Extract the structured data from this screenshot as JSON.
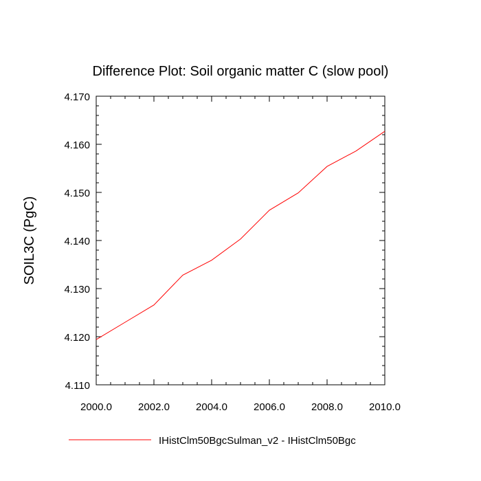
{
  "chart_data": {
    "type": "line",
    "title": "Difference Plot: Soil organic matter C (slow pool)",
    "xlabel": "",
    "ylabel": "SOIL3C  (PgC)",
    "xlim": [
      2000,
      2010
    ],
    "ylim": [
      4.11,
      4.17
    ],
    "x_ticks": [
      2000,
      2002,
      2004,
      2006,
      2008,
      2010
    ],
    "x_tick_labels": [
      "2000.0",
      "2002.0",
      "2004.0",
      "2006.0",
      "2008.0",
      "2010.0"
    ],
    "y_ticks": [
      4.11,
      4.12,
      4.13,
      4.14,
      4.15,
      4.16,
      4.17
    ],
    "y_tick_labels": [
      "4.110",
      "4.120",
      "4.130",
      "4.140",
      "4.150",
      "4.160",
      "4.170"
    ],
    "grid": false,
    "legend_position": "bottom",
    "series": [
      {
        "name": "IHistClm50BgcSulman_v2 - IHistClm50Bgc",
        "color": "#ff0000",
        "x": [
          2000,
          2001,
          2002,
          2003,
          2004,
          2005,
          2006,
          2007,
          2008,
          2009,
          2010
        ],
        "y": [
          4.1194,
          4.123,
          4.1266,
          4.1328,
          4.1359,
          4.1403,
          4.1463,
          4.1499,
          4.1554,
          4.1586,
          4.1627
        ]
      }
    ]
  }
}
